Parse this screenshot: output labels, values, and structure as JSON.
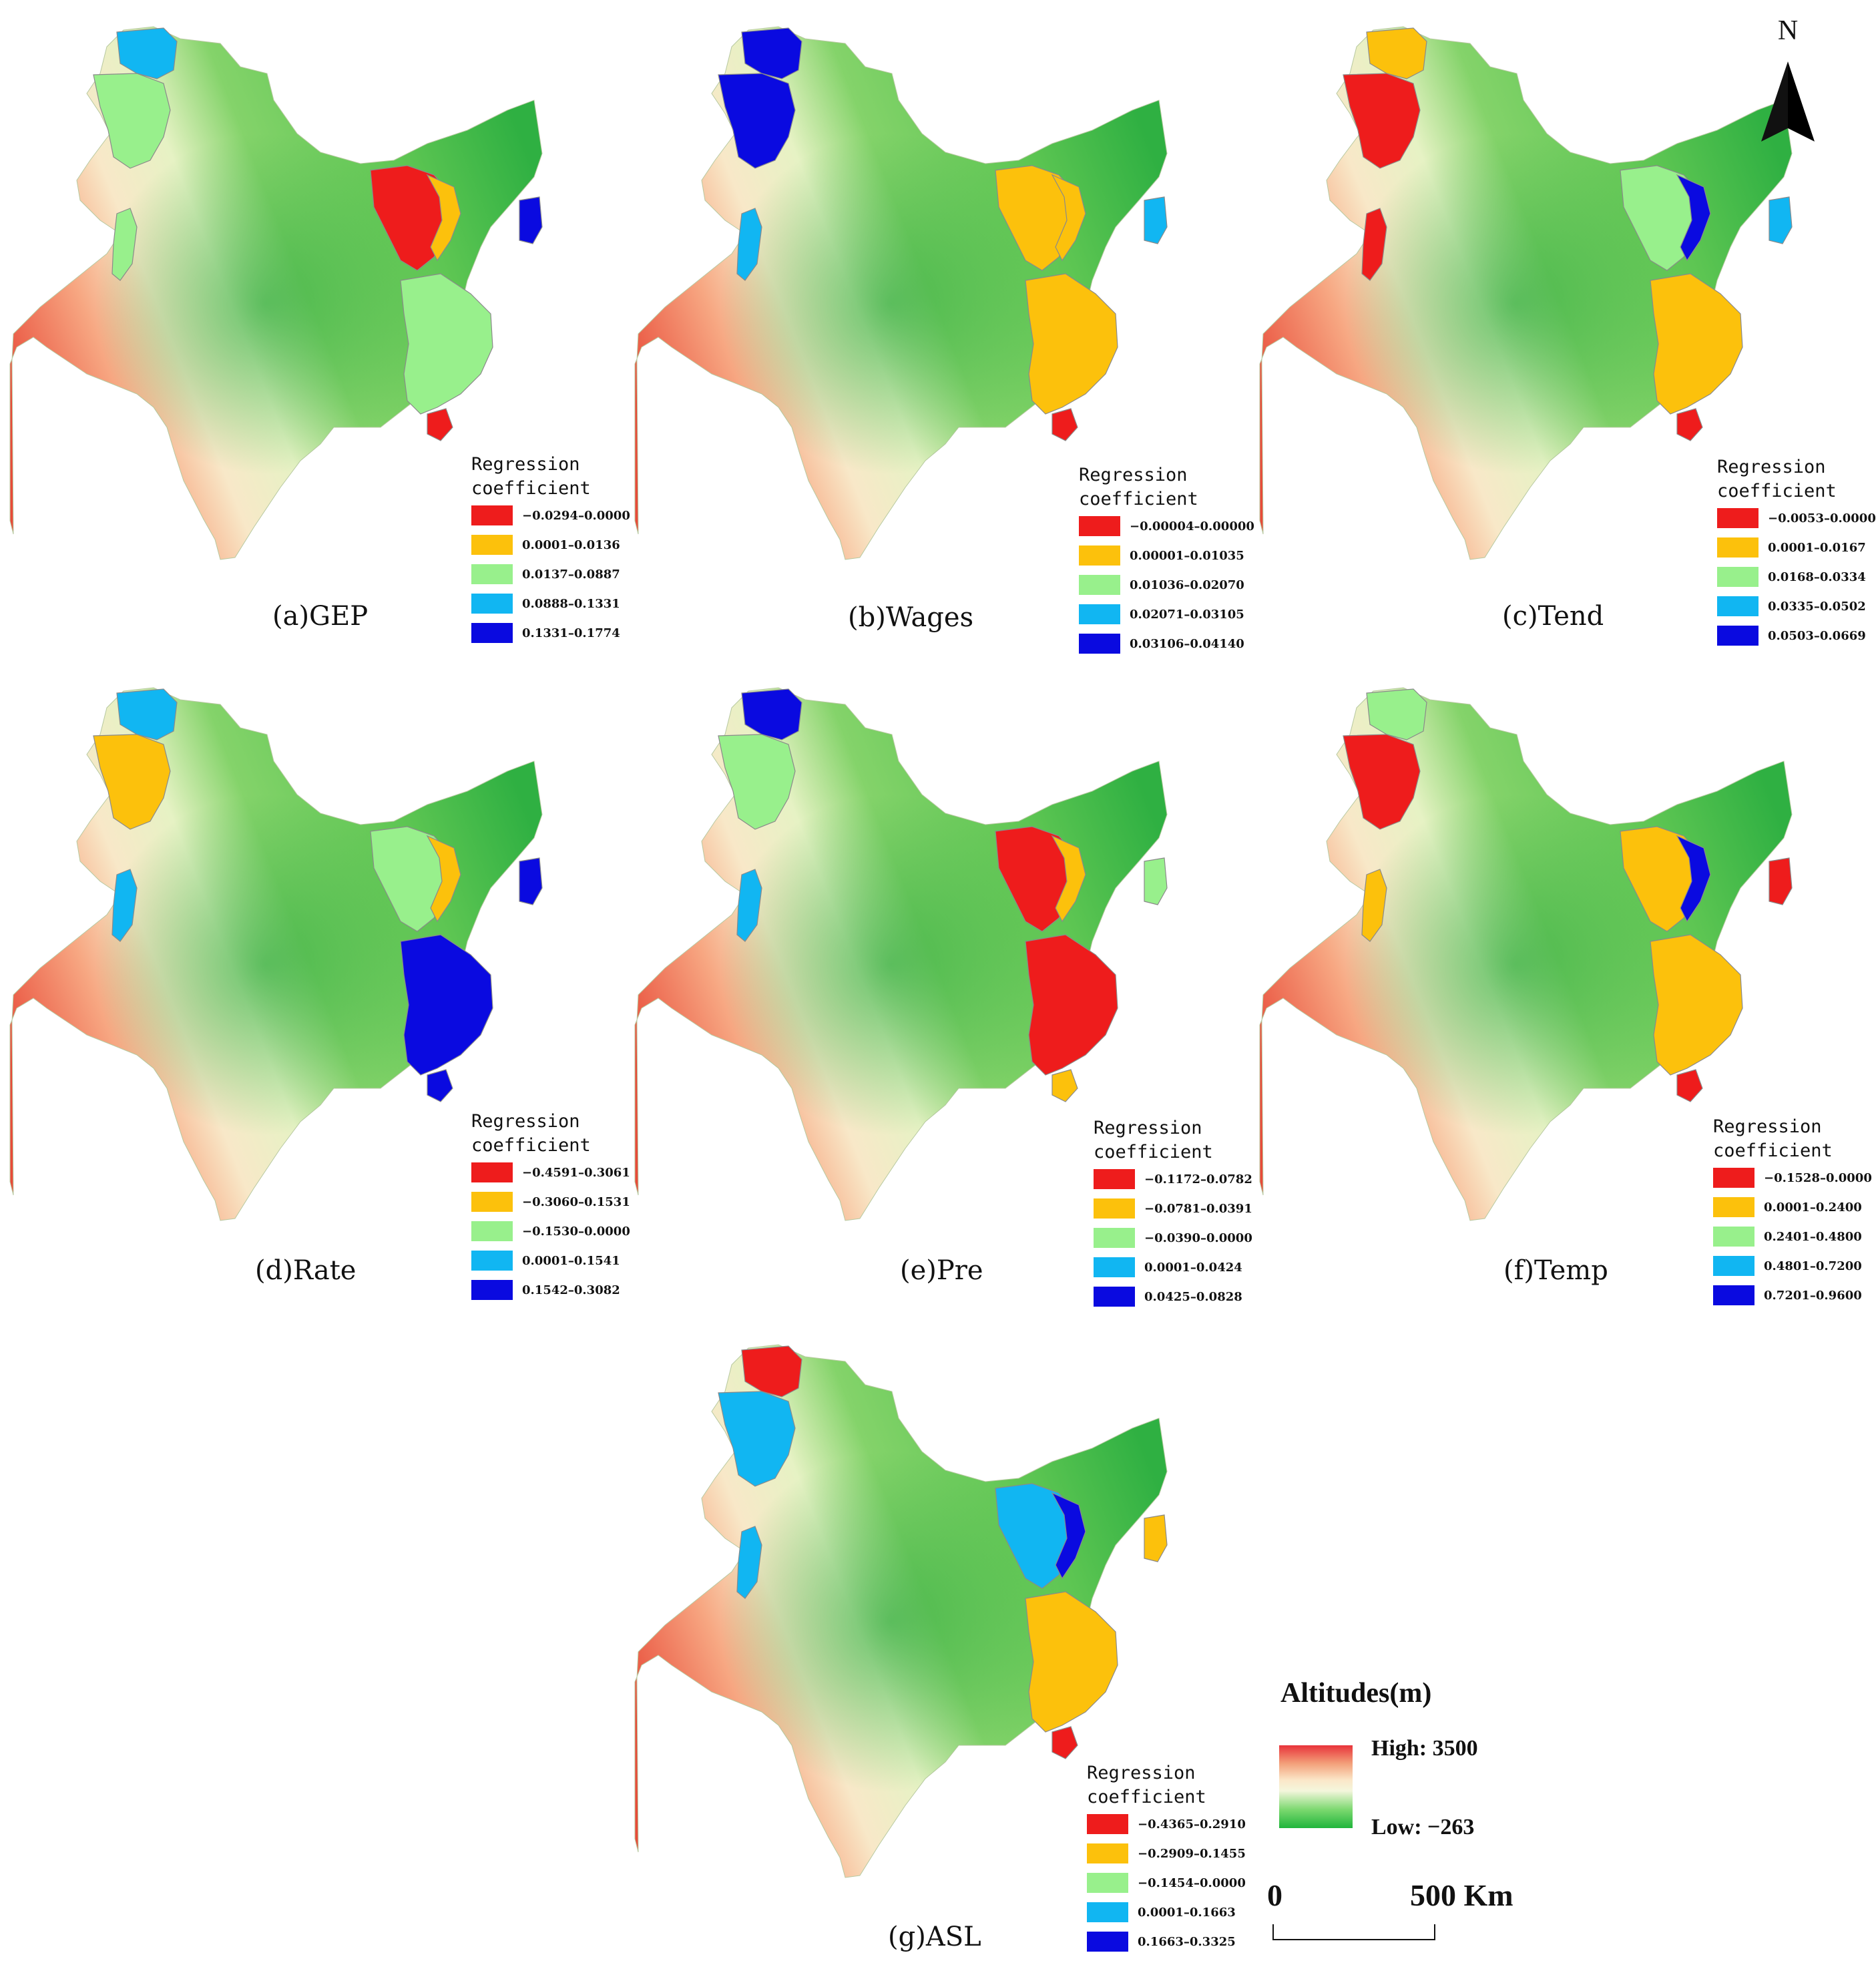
{
  "colors": {
    "class1": "#ee1c1c",
    "class2": "#fcc10c",
    "class3": "#98f08c",
    "class4": "#11b6f2",
    "class5": "#0a0ae0"
  },
  "panels": [
    {
      "caption": "(a)GEP",
      "legend_title": "Regression\ncoefficient",
      "classes": [
        "−0.0294–0.0000",
        "0.0001–0.0136",
        "0.0137–0.0887",
        "0.0888–0.1331",
        "0.1331–0.1774"
      ],
      "regions": {
        "north": "class4",
        "northwest": "class3",
        "westStrip": "class3",
        "center": "class1",
        "centerEdge": "class2",
        "east": "class5",
        "south": "class3",
        "southTip": "class1"
      }
    },
    {
      "caption": "(b)Wages",
      "legend_title": "Regression\ncoefficient",
      "classes": [
        "−0.00004–0.00000",
        "0.00001–0.01035",
        "0.01036–0.02070",
        "0.02071–0.03105",
        "0.03106–0.04140"
      ],
      "regions": {
        "north": "class5",
        "northwest": "class5",
        "westStrip": "class4",
        "center": "class2",
        "centerEdge": "class2",
        "east": "class4",
        "south": "class2",
        "southTip": "class1"
      }
    },
    {
      "caption": "(c)Tend",
      "legend_title": "Regression\ncoefficient",
      "classes": [
        "−0.0053–0.0000",
        "0.0001–0.0167",
        "0.0168–0.0334",
        "0.0335–0.0502",
        "0.0503–0.0669"
      ],
      "regions": {
        "north": "class2",
        "northwest": "class1",
        "westStrip": "class1",
        "center": "class3",
        "centerEdge": "class5",
        "east": "class4",
        "south": "class2",
        "southTip": "class1"
      }
    },
    {
      "caption": "(d)Rate",
      "legend_title": "Regression\ncoefficient",
      "classes": [
        "−0.4591–0.3061",
        "−0.3060–0.1531",
        "−0.1530–0.0000",
        "0.0001–0.1541",
        "0.1542–0.3082"
      ],
      "regions": {
        "north": "class4",
        "northwest": "class2",
        "westStrip": "class4",
        "center": "class3",
        "centerEdge": "class2",
        "east": "class5",
        "south": "class5",
        "southTip": "class5"
      }
    },
    {
      "caption": "(e)Pre",
      "legend_title": "Regression\ncoefficient",
      "classes": [
        "−0.1172–0.0782",
        "−0.0781–0.0391",
        "−0.0390–0.0000",
        "0.0001–0.0424",
        "0.0425–0.0828"
      ],
      "regions": {
        "north": "class5",
        "northwest": "class3",
        "westStrip": "class4",
        "center": "class1",
        "centerEdge": "class2",
        "east": "class3",
        "south": "class1",
        "southTip": "class2"
      }
    },
    {
      "caption": "(f)Temp",
      "legend_title": "Regression\ncoefficient",
      "classes": [
        "−0.1528–0.0000",
        "0.0001–0.2400",
        "0.2401–0.4800",
        "0.4801–0.7200",
        "0.7201–0.9600"
      ],
      "regions": {
        "north": "class3",
        "northwest": "class1",
        "westStrip": "class2",
        "center": "class2",
        "centerEdge": "class5",
        "east": "class1",
        "south": "class2",
        "southTip": "class1"
      }
    },
    {
      "caption": "(g)ASL",
      "legend_title": "Regression\ncoefficient",
      "classes": [
        "−0.4365–0.2910",
        "−0.2909–0.1455",
        "−0.1454–0.0000",
        "0.0001–0.1663",
        "0.1663–0.3325"
      ],
      "regions": {
        "north": "class1",
        "northwest": "class4",
        "westStrip": "class4",
        "center": "class4",
        "centerEdge": "class5",
        "east": "class2",
        "south": "class2",
        "southTip": "class1"
      }
    }
  ],
  "north_arrow": {
    "label": "N"
  },
  "altitude_legend": {
    "title": "Altitudes(m)",
    "high": "High: 3500",
    "low": "Low: −263"
  },
  "scale_bar": {
    "start": "0",
    "end": "500 Km"
  }
}
